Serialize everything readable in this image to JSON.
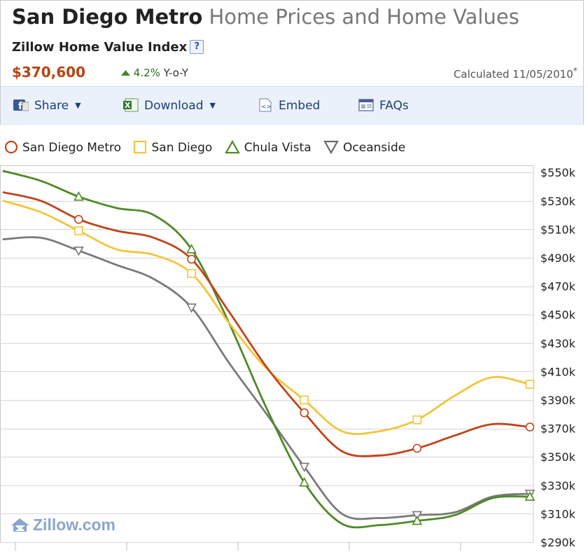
{
  "header": {
    "title_main": "San Diego Metro",
    "title_sub": "Home Prices and Home Values",
    "index_label": "Zillow Home Value Index",
    "help_label": "?",
    "price": "$370,600",
    "change_value": "4.2%",
    "change_label": "Y-o-Y",
    "calculated": "Calculated 11/05/2010",
    "calculated_footnote": "*"
  },
  "toolbar": {
    "share_label": "Share",
    "download_label": "Download",
    "embed_label": "Embed",
    "faqs_label": "FAQs"
  },
  "watermark": "Zillow.com",
  "colors": {
    "san_diego_metro": "#c1441a",
    "san_diego": "#f3c53a",
    "chula_vista": "#4f8a26",
    "oceanside": "#7a7a7a"
  },
  "chart_data": {
    "type": "line",
    "title": "",
    "xlabel": "",
    "ylabel": "",
    "ylim": [
      290000,
      555000
    ],
    "y_axis_position": "right",
    "y_ticks": [
      290000,
      310000,
      330000,
      350000,
      370000,
      390000,
      410000,
      430000,
      450000,
      470000,
      490000,
      510000,
      530000,
      550000
    ],
    "y_tick_labels": [
      "$290k",
      "$310k",
      "$330k",
      "$350k",
      "$370k",
      "$390k",
      "$410k",
      "$430k",
      "$450k",
      "$470k",
      "$490k",
      "$510k",
      "$530k",
      "$550k"
    ],
    "grid": true,
    "legend_position": "top-left",
    "x_tick_labels": [],
    "x_tick_count": 5,
    "series": [
      {
        "name": "San Diego Metro",
        "marker": "circle",
        "color": "#c1441a",
        "points": [
          [
            0.0,
            536000
          ],
          [
            0.5,
            530000
          ],
          [
            1.0,
            517000
          ],
          [
            1.5,
            509000
          ],
          [
            2.0,
            504000
          ],
          [
            2.5,
            489000
          ],
          [
            3.0,
            452000
          ],
          [
            3.5,
            413000
          ],
          [
            4.0,
            381000
          ],
          [
            4.5,
            354000
          ],
          [
            5.0,
            351000
          ],
          [
            5.5,
            356000
          ],
          [
            6.0,
            365000
          ],
          [
            6.5,
            373000
          ],
          [
            7.0,
            371000
          ]
        ],
        "marker_points": [
          [
            1.0,
            517000
          ],
          [
            2.5,
            489000
          ],
          [
            4.0,
            381000
          ],
          [
            5.5,
            356000
          ],
          [
            7.0,
            371000
          ]
        ]
      },
      {
        "name": "San Diego",
        "marker": "square",
        "color": "#f3c53a",
        "points": [
          [
            0.0,
            530000
          ],
          [
            0.5,
            522000
          ],
          [
            1.0,
            509000
          ],
          [
            1.5,
            496000
          ],
          [
            2.0,
            492000
          ],
          [
            2.5,
            479000
          ],
          [
            3.0,
            444000
          ],
          [
            3.5,
            412000
          ],
          [
            4.0,
            390000
          ],
          [
            4.5,
            368000
          ],
          [
            5.0,
            368000
          ],
          [
            5.5,
            376000
          ],
          [
            6.0,
            393000
          ],
          [
            6.5,
            406000
          ],
          [
            7.0,
            401000
          ]
        ],
        "marker_points": [
          [
            1.0,
            509000
          ],
          [
            2.5,
            479000
          ],
          [
            4.0,
            390000
          ],
          [
            5.5,
            376000
          ],
          [
            7.0,
            401000
          ]
        ]
      },
      {
        "name": "Chula Vista",
        "marker": "triangle-up",
        "color": "#4f8a26",
        "points": [
          [
            0.0,
            551000
          ],
          [
            0.5,
            544000
          ],
          [
            1.0,
            533000
          ],
          [
            1.5,
            525000
          ],
          [
            2.0,
            520000
          ],
          [
            2.5,
            496000
          ],
          [
            3.0,
            444000
          ],
          [
            3.5,
            384000
          ],
          [
            4.0,
            332000
          ],
          [
            4.5,
            303000
          ],
          [
            5.0,
            302000
          ],
          [
            5.5,
            305000
          ],
          [
            6.0,
            309000
          ],
          [
            6.5,
            321000
          ],
          [
            7.0,
            322000
          ]
        ],
        "marker_points": [
          [
            1.0,
            533000
          ],
          [
            2.5,
            496000
          ],
          [
            4.0,
            332000
          ],
          [
            5.5,
            305000
          ],
          [
            7.0,
            322000
          ]
        ]
      },
      {
        "name": "Oceanside",
        "marker": "triangle-down",
        "color": "#7a7a7a",
        "points": [
          [
            0.0,
            503000
          ],
          [
            0.5,
            504000
          ],
          [
            1.0,
            495000
          ],
          [
            1.5,
            485000
          ],
          [
            2.0,
            475000
          ],
          [
            2.5,
            455000
          ],
          [
            3.0,
            416000
          ],
          [
            3.5,
            380000
          ],
          [
            4.0,
            343000
          ],
          [
            4.5,
            310000
          ],
          [
            5.0,
            307000
          ],
          [
            5.5,
            309000
          ],
          [
            6.0,
            311000
          ],
          [
            6.5,
            322000
          ],
          [
            7.0,
            324000
          ]
        ],
        "marker_points": [
          [
            1.0,
            495000
          ],
          [
            2.5,
            455000
          ],
          [
            4.0,
            343000
          ],
          [
            5.5,
            309000
          ],
          [
            7.0,
            324000
          ]
        ]
      }
    ]
  }
}
